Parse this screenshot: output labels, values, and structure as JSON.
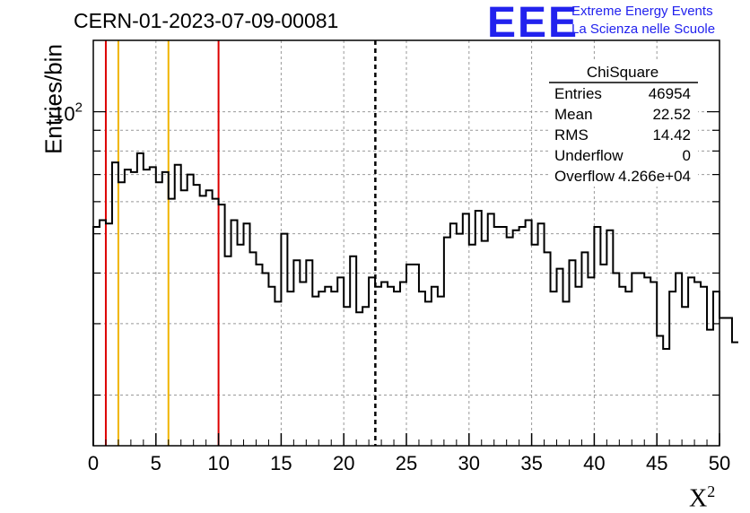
{
  "header": {
    "run_id": "CERN-01-2023-07-09-00081",
    "logo_text": "EEE",
    "logo_line1": "Extreme Energy Events",
    "logo_line2": "La Scienza nelle Scuole"
  },
  "colors": {
    "logo": "#2222ee",
    "red_lines": "#dd0000",
    "yellow_lines": "#f0b400",
    "grid": "#999999"
  },
  "stats": {
    "title": "ChiSquare",
    "rows": [
      {
        "label": "Entries",
        "value": "46954"
      },
      {
        "label": "Mean",
        "value": "22.52"
      },
      {
        "label": "RMS",
        "value": "14.42"
      },
      {
        "label": "Underflow",
        "value": "0"
      },
      {
        "label": "Overflow",
        "value": "4.266e+04"
      }
    ]
  },
  "chart_data": {
    "type": "bar",
    "ylabel": "Entries/bin",
    "xlabel": "X",
    "xlabel_sup": "2",
    "xlim": [
      0,
      50
    ],
    "ylim": [
      15,
      150
    ],
    "yscale": "log",
    "grid": true,
    "x_ticks": [
      0,
      5,
      10,
      15,
      20,
      25,
      30,
      35,
      40,
      45,
      50
    ],
    "y_tick_label": "10",
    "y_tick_sup": "2",
    "y_tick_value": 100,
    "bin_width": 0.5,
    "values": [
      52,
      54,
      53,
      75,
      67,
      72,
      71,
      79,
      72,
      73,
      67,
      71,
      61,
      74,
      64,
      70,
      66,
      62,
      64,
      61,
      59,
      44,
      54,
      47,
      53,
      45,
      42,
      40,
      37,
      34,
      50,
      36,
      43,
      38,
      43,
      35,
      36,
      37,
      36,
      39,
      33,
      44,
      32,
      33,
      39,
      37,
      38,
      37,
      36,
      38,
      42,
      42,
      36,
      34,
      37,
      35,
      49,
      53,
      50,
      56,
      47,
      57,
      48,
      56,
      52,
      52,
      49,
      51,
      52,
      54,
      47,
      53,
      45,
      36,
      41,
      34,
      43,
      37,
      45,
      39,
      52,
      42,
      51,
      40,
      37,
      36,
      40,
      40,
      39,
      38,
      28,
      26,
      36,
      40,
      33,
      39,
      38,
      37,
      29,
      36,
      31,
      31,
      27
    ],
    "vlines_red": [
      1,
      10
    ],
    "vlines_yellow": [
      2,
      6
    ],
    "vline_mean": 22.52
  }
}
